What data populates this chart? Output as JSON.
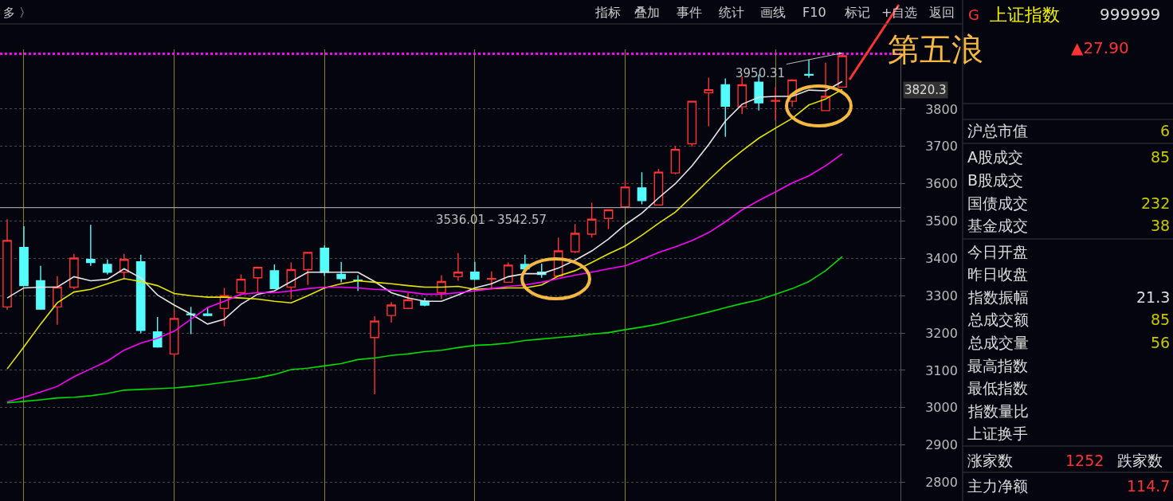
{
  "chart_data": {
    "type": "candlestick",
    "categories": [
      null,
      null,
      null,
      null,
      null,
      null,
      null,
      null,
      null,
      null,
      null,
      null,
      null,
      null,
      null,
      null,
      null,
      null,
      null,
      null,
      null,
      null,
      null,
      null,
      null,
      null,
      null,
      null,
      null,
      null,
      null,
      null,
      null,
      null,
      null,
      null,
      null,
      null,
      null,
      null,
      null,
      null,
      null,
      null,
      null,
      null,
      null,
      null,
      null,
      null,
      null
    ],
    "ohlc": [
      [
        3270,
        3505,
        3262,
        3448
      ],
      [
        3429,
        3486,
        3327,
        3327
      ],
      [
        3340,
        3380,
        3262,
        3264
      ],
      [
        3270,
        3353,
        3222,
        3323
      ],
      [
        3323,
        3412,
        3317,
        3401
      ],
      [
        3397,
        3490,
        3380,
        3389
      ],
      [
        3384,
        3397,
        3357,
        3363
      ],
      [
        3363,
        3412,
        3346,
        3397
      ],
      [
        3391,
        3410,
        3199,
        3207
      ],
      [
        3203,
        3243,
        3161,
        3163
      ],
      [
        3144,
        3260,
        3137,
        3239
      ],
      [
        3251,
        3270,
        3197,
        3249
      ],
      [
        3251,
        3270,
        3245,
        3247
      ],
      [
        3266,
        3321,
        3218,
        3300
      ],
      [
        3308,
        3357,
        3306,
        3344
      ],
      [
        3348,
        3378,
        3308,
        3376
      ],
      [
        3367,
        3384,
        3319,
        3319
      ],
      [
        3323,
        3389,
        3291,
        3370
      ],
      [
        3370,
        3416,
        3329,
        3416
      ],
      [
        3427,
        3435,
        3353,
        3363
      ],
      [
        3357,
        3391,
        3336,
        3346
      ],
      [
        3342,
        3355,
        3313,
        3340
      ],
      [
        3188,
        3245,
        3036,
        3232
      ],
      [
        3247,
        3283,
        3228,
        3275
      ],
      [
        3266,
        3308,
        3264,
        3289
      ],
      [
        3285,
        3294,
        3272,
        3275
      ],
      [
        3308,
        3355,
        3291,
        3338
      ],
      [
        3351,
        3414,
        3340,
        3363
      ],
      [
        3363,
        3391,
        3342,
        3344
      ],
      [
        3344,
        3365,
        3317,
        3346
      ],
      [
        3336,
        3389,
        3336,
        3382
      ],
      [
        3384,
        3410,
        3372,
        3372
      ],
      [
        3363,
        3386,
        3348,
        3357
      ],
      [
        3353,
        3456,
        3353,
        3420
      ],
      [
        3418,
        3492,
        3414,
        3467
      ],
      [
        3465,
        3549,
        3456,
        3505
      ],
      [
        3507,
        3530,
        3479,
        3530
      ],
      [
        3538,
        3608,
        3536,
        3591
      ],
      [
        3589,
        3631,
        3545,
        3555
      ],
      [
        3543,
        3640,
        3543,
        3631
      ],
      [
        3629,
        3701,
        3625,
        3692
      ],
      [
        3707,
        3821,
        3699,
        3821
      ],
      [
        3844,
        3884,
        3754,
        3852
      ],
      [
        3865,
        3882,
        3726,
        3808
      ],
      [
        3806,
        3887,
        3787,
        3865
      ],
      [
        3872,
        3893,
        3796,
        3817
      ],
      [
        3821,
        3859,
        3770,
        3823
      ],
      [
        3821,
        3880,
        3806,
        3878
      ],
      [
        3893,
        3933,
        3884,
        3891
      ],
      [
        3796,
        3924,
        3796,
        3834
      ],
      [
        3859,
        3950.31,
        3859,
        3943
      ]
    ],
    "colors": [
      "#ff3333",
      "#54fcfc",
      "#54fcfc",
      "#ff3333",
      "#ff3333",
      "#54fcfc",
      "#54fcfc",
      "#ff3333",
      "#54fcfc",
      "#54fcfc",
      "#ff3333",
      "#54fcfc",
      "#54fcfc",
      "#ff3333",
      "#ff3333",
      "#ff3333",
      "#54fcfc",
      "#ff3333",
      "#ff3333",
      "#54fcfc",
      "#54fcfc",
      "#54fcfc",
      "#ff3333",
      "#ff3333",
      "#ff3333",
      "#54fcfc",
      "#ff3333",
      "#ff3333",
      "#54fcfc",
      "#ff3333",
      "#ff3333",
      "#54fcfc",
      "#54fcfc",
      "#ff3333",
      "#ff3333",
      "#ff3333",
      "#ff3333",
      "#ff3333",
      "#54fcfc",
      "#ff3333",
      "#ff3333",
      "#ff3333",
      "#ff3333",
      "#54fcfc",
      "#ff3333",
      "#54fcfc",
      "#ff3333",
      "#ff3333",
      "#54fcfc",
      "#ff3333",
      "#ff3333"
    ],
    "series": [
      {
        "type": "line",
        "color": "#e6e6e6",
        "values": [
          3294,
          3321,
          3323,
          3323,
          3351,
          3340,
          3344,
          3372,
          3348,
          3302,
          3275,
          3251,
          3224,
          3237,
          3277,
          3304,
          3313,
          3338,
          3363,
          3363,
          3363,
          3363,
          3338,
          3308,
          3294,
          3285,
          3285,
          3302,
          3321,
          3332,
          3351,
          3359,
          3359,
          3374,
          3395,
          3420,
          3452,
          3490,
          3521,
          3562,
          3600,
          3648,
          3705,
          3768,
          3813,
          3832,
          3834,
          3834,
          3851,
          3849,
          3874
        ]
      },
      {
        "type": "line",
        "color": "#e6e600",
        "values": [
          3104,
          3163,
          3224,
          3281,
          3310,
          3317,
          3332,
          3346,
          3338,
          3327,
          3306,
          3300,
          3296,
          3296,
          3294,
          3291,
          3285,
          3281,
          3300,
          3321,
          3332,
          3340,
          3336,
          3332,
          3327,
          3323,
          3323,
          3325,
          3317,
          3319,
          3321,
          3321,
          3329,
          3353,
          3367,
          3389,
          3412,
          3433,
          3462,
          3494,
          3524,
          3566,
          3610,
          3652,
          3688,
          3722,
          3749,
          3775,
          3811,
          3827,
          3853
        ]
      },
      {
        "type": "line",
        "color": "#ff00ff",
        "values": [
          3015,
          3028,
          3042,
          3057,
          3083,
          3104,
          3125,
          3154,
          3173,
          3186,
          3205,
          3237,
          3268,
          3285,
          3304,
          3308,
          3308,
          3313,
          3319,
          3323,
          3323,
          3321,
          3317,
          3315,
          3310,
          3304,
          3304,
          3308,
          3313,
          3319,
          3325,
          3329,
          3336,
          3346,
          3355,
          3363,
          3372,
          3380,
          3397,
          3416,
          3431,
          3448,
          3469,
          3498,
          3530,
          3555,
          3578,
          3602,
          3621,
          3648,
          3680
        ]
      },
      {
        "type": "line",
        "color": "#00dd00",
        "values": [
          3013,
          3017,
          3021,
          3026,
          3028,
          3032,
          3038,
          3047,
          3049,
          3051,
          3053,
          3057,
          3062,
          3068,
          3074,
          3080,
          3089,
          3102,
          3106,
          3112,
          3118,
          3129,
          3133,
          3140,
          3144,
          3150,
          3154,
          3161,
          3167,
          3169,
          3173,
          3180,
          3184,
          3188,
          3192,
          3197,
          3201,
          3209,
          3216,
          3224,
          3235,
          3245,
          3256,
          3268,
          3279,
          3289,
          3304,
          3319,
          3338,
          3367,
          3405
        ]
      }
    ],
    "line_style": "solid",
    "ylim": [
      2750,
      3960
    ],
    "yticks": [
      2800,
      2900,
      3000,
      3100,
      3200,
      3300,
      3400,
      3500,
      3600,
      3700,
      3800
    ],
    "grid": true,
    "tick_labels": "y",
    "ref_lines": [
      {
        "axis": "y",
        "value": 3536.01,
        "label": "3536.01 - 3542.57",
        "color": "#bfbfbf"
      },
      {
        "axis": "y",
        "value": 3948,
        "color": "#ff00ff",
        "line_style": "dotted"
      }
    ],
    "annotations": [
      "第五浪",
      {
        "text": "3950.31",
        "y": 3950.31
      },
      "3820.3",
      "多 〉",
      "指标",
      "叠加",
      "事件",
      "统计",
      "画线",
      "F10",
      "标记",
      "+自选",
      "返回",
      "G",
      "上证指数",
      "999999",
      "▲27.90",
      "沪总市值",
      "6",
      "A股成交",
      "85",
      "B股成交",
      "国债成交",
      "232",
      "基金成交",
      "38",
      "今日开盘",
      "昨日收盘",
      "指数振幅",
      "21.3",
      "总成交额",
      "85",
      "总成交量",
      "56",
      "最高指数",
      "最低指数",
      "指数量比",
      "上证换手",
      "涨家数",
      "1252",
      "跌家数",
      "主力净额",
      "114.7"
    ]
  }
}
